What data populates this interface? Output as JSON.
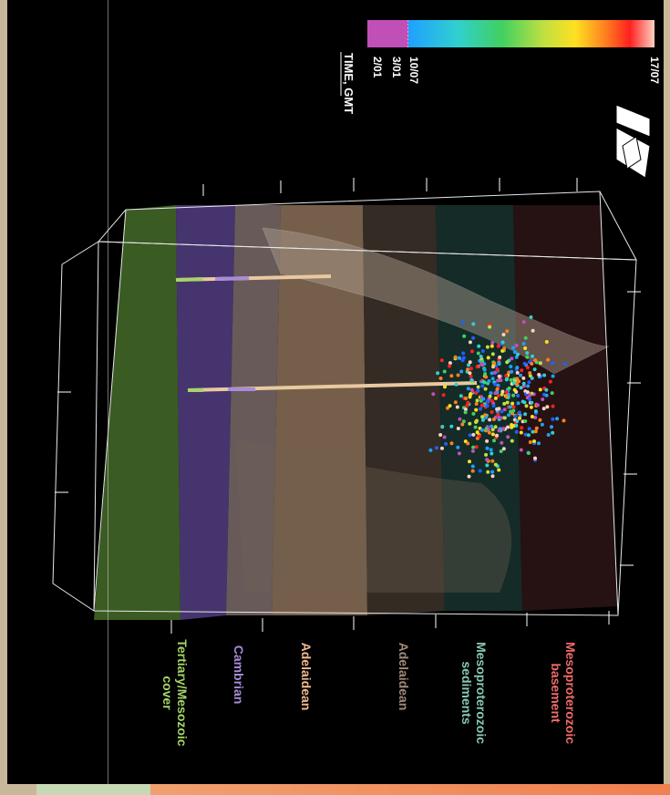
{
  "legend": {
    "title": "TIME, GMT",
    "ticks": [
      "2/01",
      "3/01",
      "10/07",
      "17/07"
    ],
    "colors": {
      "early": "#c050b8",
      "gradient": [
        "#1fa0ff",
        "#30d0d0",
        "#40d060",
        "#c0e040",
        "#ffe020",
        "#ff8020",
        "#ff2020",
        "#ffd0c0"
      ]
    }
  },
  "layers": [
    {
      "name": "Tertiary/Mesozoic\ncover",
      "color": "#a6d468"
    },
    {
      "name": "Cambrian",
      "color": "#a98cd8"
    },
    {
      "name": "Adelaidean",
      "color": "#f0b890"
    },
    {
      "name": "Adelaidean",
      "color": "#a08878"
    },
    {
      "name": "Mesoproterozoic\nsediments",
      "color": "#88c8b4"
    },
    {
      "name": "Mesoproterozoic\nbasement",
      "color": "#f06a6a"
    }
  ],
  "icons": [
    "north-arrow-icon"
  ]
}
